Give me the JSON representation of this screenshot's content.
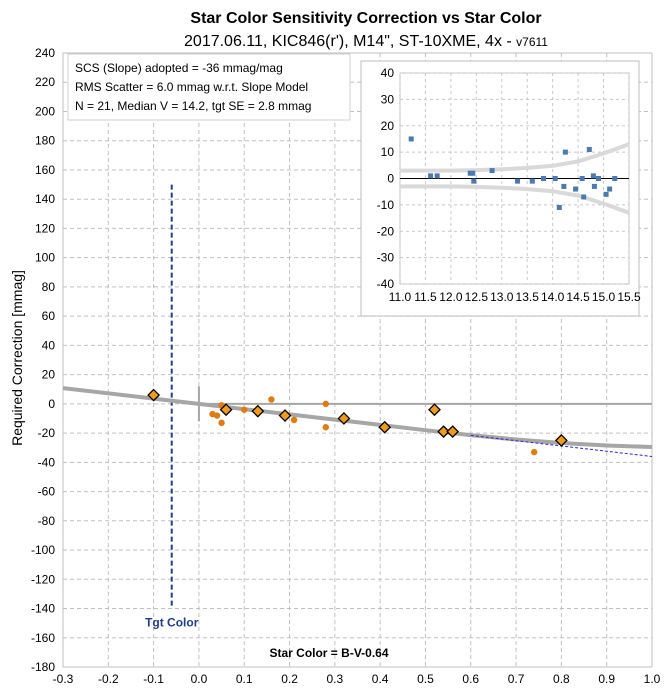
{
  "chart_data": [
    {
      "type": "scatter",
      "title": "Star Color Sensitivity Correction vs Star Color",
      "subtitle_main": "2017.06.11, KIC846(r'), M14\", ST-10XME, 4x",
      "subtitle_sep": " - ",
      "subtitle_version": "v7611",
      "xlabel": "Star Color = B-V-0.64",
      "ylabel": "Required Correction [mmag]",
      "xlim": [
        -0.3,
        1.0
      ],
      "ylim": [
        -180,
        240
      ],
      "x_ticks": [
        "-0.3",
        "-0.2",
        "-0.1",
        "0.0",
        "0.1",
        "0.2",
        "0.3",
        "0.4",
        "0.5",
        "0.6",
        "0.7",
        "0.8",
        "0.9",
        "1.0"
      ],
      "y_ticks": [
        "240",
        "220",
        "200",
        "180",
        "160",
        "140",
        "120",
        "100",
        "80",
        "60",
        "40",
        "20",
        "0",
        "-20",
        "-40",
        "-60",
        "-80",
        "-100",
        "-120",
        "-140",
        "-160",
        "-180"
      ],
      "grid": true,
      "info_box": [
        "SCS (Slope) adopted  =  -36 mmag/mag",
        "RMS Scatter = 6.0 mmag w.r.t. Slope Model",
        "N = 21,  Median V = 14.2, tgt SE = 2.8 mmag"
      ],
      "target_marker": {
        "label": "Tgt Color",
        "x": -0.06,
        "y_top": 150,
        "y_bottom": -140
      },
      "series": [
        {
          "kind": "circle",
          "color": "#e07b10",
          "points": [
            {
              "x": 0.03,
              "y": -7
            },
            {
              "x": 0.04,
              "y": -8
            },
            {
              "x": 0.05,
              "y": -13
            },
            {
              "x": 0.05,
              "y": -1
            },
            {
              "x": 0.06,
              "y": -4
            },
            {
              "x": 0.1,
              "y": -4
            },
            {
              "x": 0.16,
              "y": 3
            },
            {
              "x": 0.21,
              "y": -11
            },
            {
              "x": 0.28,
              "y": -16
            },
            {
              "x": 0.28,
              "y": 0
            },
            {
              "x": 0.74,
              "y": -33
            }
          ]
        },
        {
          "kind": "diamond",
          "color": "#f29a1a",
          "edge": "#000000",
          "points": [
            {
              "x": -0.1,
              "y": 6
            },
            {
              "x": 0.06,
              "y": -4
            },
            {
              "x": 0.13,
              "y": -5
            },
            {
              "x": 0.19,
              "y": -8
            },
            {
              "x": 0.32,
              "y": -10
            },
            {
              "x": 0.41,
              "y": -16
            },
            {
              "x": 0.52,
              "y": -4
            },
            {
              "x": 0.54,
              "y": -19
            },
            {
              "x": 0.56,
              "y": -19
            },
            {
              "x": 0.8,
              "y": -25
            }
          ]
        },
        {
          "kind": "curve",
          "color": "#a6a6a6",
          "points": [
            {
              "x": -0.3,
              "y": 10.8
            },
            {
              "x": -0.2,
              "y": 7.2
            },
            {
              "x": -0.1,
              "y": 3.6
            },
            {
              "x": 0.0,
              "y": 0.0
            },
            {
              "x": 0.1,
              "y": -3.6
            },
            {
              "x": 0.2,
              "y": -7.2
            },
            {
              "x": 0.3,
              "y": -10.8
            },
            {
              "x": 0.4,
              "y": -14.4
            },
            {
              "x": 0.5,
              "y": -18.0
            },
            {
              "x": 0.6,
              "y": -21.4
            },
            {
              "x": 0.7,
              "y": -24.4
            },
            {
              "x": 0.8,
              "y": -26.8
            },
            {
              "x": 0.9,
              "y": -28.5
            },
            {
              "x": 1.0,
              "y": -29.5
            }
          ]
        },
        {
          "kind": "dashed",
          "color": "#2a2acd",
          "points": [
            {
              "x": 0.6,
              "y": -21.6
            },
            {
              "x": 0.7,
              "y": -25.2
            },
            {
              "x": 0.8,
              "y": -28.8
            },
            {
              "x": 0.9,
              "y": -32.4
            },
            {
              "x": 1.0,
              "y": -36.0
            }
          ]
        }
      ]
    },
    {
      "type": "scatter",
      "xlim": [
        11.0,
        15.5
      ],
      "ylim": [
        -40,
        40
      ],
      "x_ticks": [
        "11.0",
        "11.5",
        "12.0",
        "12.5",
        "13.0",
        "13.5",
        "14.0",
        "14.5",
        "15.0",
        "15.5"
      ],
      "y_ticks": [
        "40",
        "30",
        "20",
        "10",
        "0",
        "-10",
        "-20",
        "-30",
        "-40"
      ],
      "grid": true,
      "series": [
        {
          "kind": "square",
          "color": "#4a7ab0",
          "points": [
            {
              "x": 11.22,
              "y": 15
            },
            {
              "x": 11.6,
              "y": 1
            },
            {
              "x": 11.73,
              "y": 1
            },
            {
              "x": 12.38,
              "y": 2
            },
            {
              "x": 12.43,
              "y": 2
            },
            {
              "x": 12.45,
              "y": -1
            },
            {
              "x": 12.81,
              "y": 3
            },
            {
              "x": 13.31,
              "y": -1
            },
            {
              "x": 13.6,
              "y": -1
            },
            {
              "x": 13.82,
              "y": 0
            },
            {
              "x": 14.05,
              "y": 0
            },
            {
              "x": 14.13,
              "y": -11
            },
            {
              "x": 14.22,
              "y": -3
            },
            {
              "x": 14.25,
              "y": 10
            },
            {
              "x": 14.45,
              "y": -4
            },
            {
              "x": 14.58,
              "y": 0
            },
            {
              "x": 14.61,
              "y": -7
            },
            {
              "x": 14.72,
              "y": 11
            },
            {
              "x": 14.8,
              "y": 1
            },
            {
              "x": 14.82,
              "y": -3
            },
            {
              "x": 14.9,
              "y": 0
            },
            {
              "x": 15.05,
              "y": -6
            },
            {
              "x": 15.12,
              "y": -4
            },
            {
              "x": 15.22,
              "y": 0
            }
          ]
        },
        {
          "kind": "band_upper",
          "color": "#d9d9d9",
          "points": [
            {
              "x": 11.0,
              "y": 3
            },
            {
              "x": 11.5,
              "y": 3
            },
            {
              "x": 12.0,
              "y": 3
            },
            {
              "x": 12.5,
              "y": 3.2
            },
            {
              "x": 13.0,
              "y": 3.5
            },
            {
              "x": 13.5,
              "y": 4
            },
            {
              "x": 14.0,
              "y": 4.8
            },
            {
              "x": 14.5,
              "y": 6.5
            },
            {
              "x": 15.0,
              "y": 9.5
            },
            {
              "x": 15.5,
              "y": 13
            }
          ]
        },
        {
          "kind": "band_lower",
          "color": "#d9d9d9",
          "points": [
            {
              "x": 11.0,
              "y": -3
            },
            {
              "x": 11.5,
              "y": -3
            },
            {
              "x": 12.0,
              "y": -3
            },
            {
              "x": 12.5,
              "y": -3.2
            },
            {
              "x": 13.0,
              "y": -3.5
            },
            {
              "x": 13.5,
              "y": -4
            },
            {
              "x": 14.0,
              "y": -4.8
            },
            {
              "x": 14.5,
              "y": -6.5
            },
            {
              "x": 15.0,
              "y": -9.5
            },
            {
              "x": 15.5,
              "y": -13
            }
          ]
        }
      ]
    }
  ]
}
